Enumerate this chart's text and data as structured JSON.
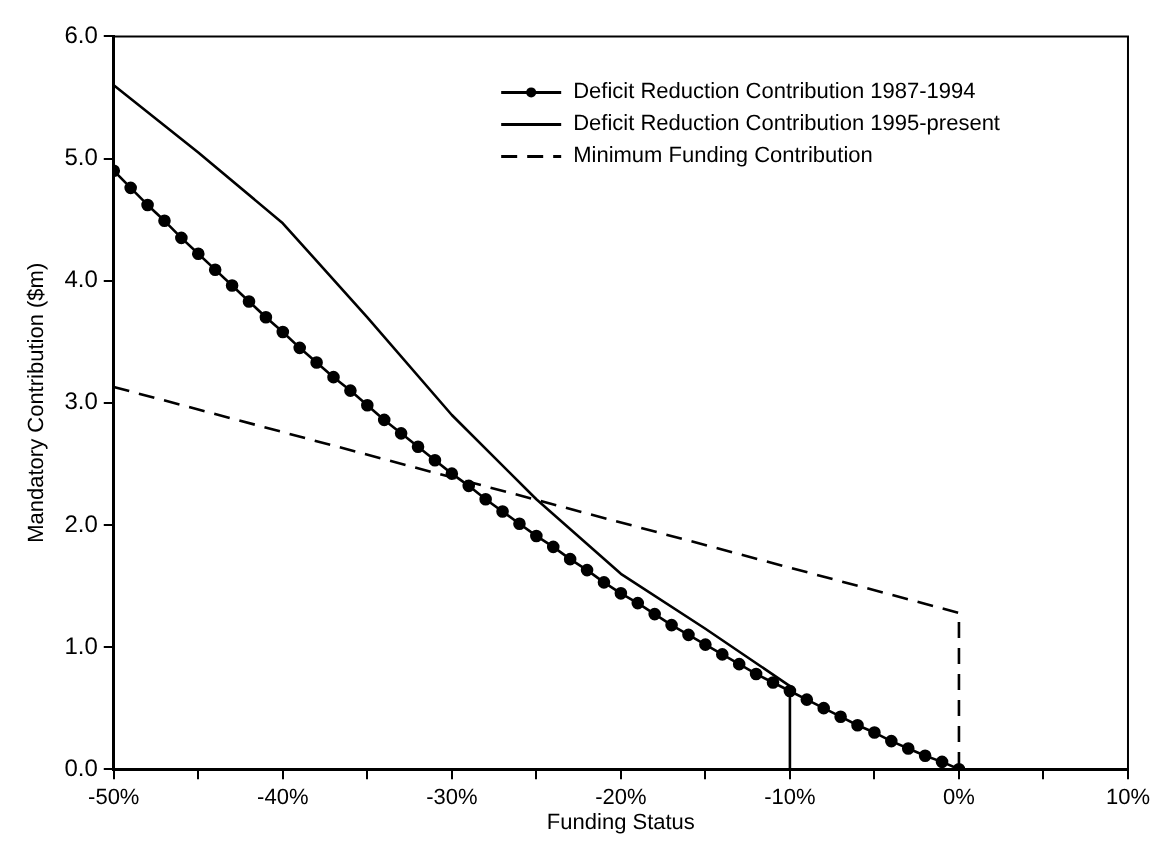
{
  "chart_data": {
    "type": "line",
    "xlabel": "Funding Status",
    "ylabel": "Mandatory Contribution ($m)",
    "xlim": [
      -50,
      10
    ],
    "xticks": [
      {
        "value": -50,
        "label": "-50%"
      },
      {
        "value": -45,
        "label": null
      },
      {
        "value": -40,
        "label": "-40%"
      },
      {
        "value": -35,
        "label": null
      },
      {
        "value": -30,
        "label": "-30%"
      },
      {
        "value": -25,
        "label": null
      },
      {
        "value": -20,
        "label": "-20%"
      },
      {
        "value": -15,
        "label": null
      },
      {
        "value": -10,
        "label": "-10%"
      },
      {
        "value": -5,
        "label": null
      },
      {
        "value": 0,
        "label": "0%"
      },
      {
        "value": 5,
        "label": null
      },
      {
        "value": 10,
        "label": "10%"
      }
    ],
    "ylim": [
      0,
      6
    ],
    "yticks": [
      {
        "value": 0,
        "label": "0.0"
      },
      {
        "value": 1,
        "label": "1.0"
      },
      {
        "value": 2,
        "label": "2.0"
      },
      {
        "value": 3,
        "label": "3.0"
      },
      {
        "value": 4,
        "label": "4.0"
      },
      {
        "value": 5,
        "label": "5.0"
      },
      {
        "value": 6,
        "label": "6.0"
      }
    ],
    "grid": false,
    "legend": "top right",
    "series": [
      {
        "name": "Deficit Reduction Contribution 1987-1994",
        "color": "#000000",
        "marker": "circle",
        "line_style": "solid",
        "x": [
          -50,
          -49,
          -48,
          -47,
          -46,
          -45,
          -44,
          -43,
          -42,
          -41,
          -40,
          -39,
          -38,
          -37,
          -36,
          -35,
          -34,
          -33,
          -32,
          -31,
          -30,
          -29,
          -28,
          -27,
          -26,
          -25,
          -24,
          -23,
          -22,
          -21,
          -20,
          -19,
          -18,
          -17,
          -16,
          -15,
          -14,
          -13,
          -12,
          -11,
          -10,
          -9,
          -8,
          -7,
          -6,
          -5,
          -4,
          -3,
          -2,
          -1,
          0
        ],
        "values": [
          4.9,
          4.76,
          4.62,
          4.49,
          4.35,
          4.22,
          4.09,
          3.96,
          3.83,
          3.7,
          3.58,
          3.45,
          3.33,
          3.21,
          3.1,
          2.98,
          2.86,
          2.75,
          2.64,
          2.53,
          2.42,
          2.32,
          2.21,
          2.11,
          2.01,
          1.91,
          1.82,
          1.72,
          1.63,
          1.53,
          1.44,
          1.36,
          1.27,
          1.18,
          1.1,
          1.02,
          0.94,
          0.86,
          0.78,
          0.71,
          0.64,
          0.57,
          0.5,
          0.43,
          0.36,
          0.3,
          0.23,
          0.17,
          0.11,
          0.06,
          0
        ]
      },
      {
        "name": "Deficit Reduction Contribution 1995-present",
        "color": "#000000",
        "marker": "none",
        "line_style": "solid",
        "x": [
          -50,
          -45,
          -40,
          -35,
          -30,
          -25,
          -20,
          -15,
          -10,
          -10
        ],
        "values": [
          5.6,
          5.05,
          4.47,
          3.7,
          2.9,
          2.21,
          1.6,
          1.15,
          0.68,
          0
        ]
      },
      {
        "name": "Minimum Funding Contribution",
        "color": "#000000",
        "marker": "none",
        "line_style": "dashed",
        "x": [
          -50,
          0,
          0,
          10
        ],
        "values": [
          3.13,
          1.28,
          0,
          0
        ]
      }
    ]
  }
}
